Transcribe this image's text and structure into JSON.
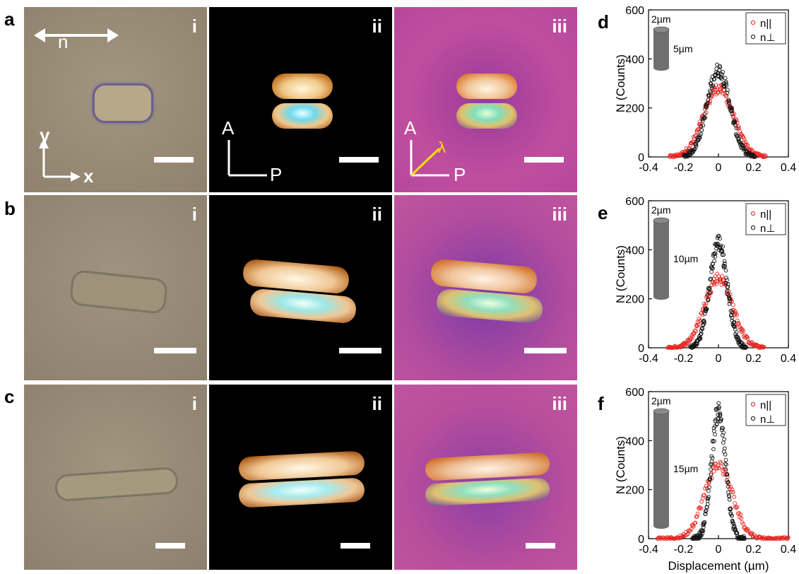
{
  "labels": {
    "row_a": "a",
    "row_b": "b",
    "row_c": "c",
    "roman_i": "i",
    "roman_ii": "ii",
    "roman_iii": "iii",
    "director": "n",
    "axis_x": "x",
    "axis_y": "y",
    "analyzer": "A",
    "polarizer": "P",
    "lambda": "λ"
  },
  "colors": {
    "brightfield": "#9a8b76",
    "crossed": "#000000",
    "waveplate": "#b54a9c",
    "series_parallel": "#e8231f",
    "series_perp": "#111111",
    "cylinder": "#6f6f6f",
    "lambda_line": "#f5e000"
  },
  "chart_data": [
    {
      "panel": "d",
      "type": "scatter",
      "xlabel": "",
      "ylabel": "N (Counts)",
      "xlim": [
        -0.4,
        0.4
      ],
      "ylim": [
        0,
        600
      ],
      "xticks": [
        "-0.4",
        "-0.2",
        "0",
        "0.2",
        "0.4"
      ],
      "yticks": [
        "0",
        "200",
        "400",
        "600"
      ],
      "legend_position": "top-right",
      "inset_diameter": "2µm",
      "inset_length": "5µm",
      "series": [
        {
          "name": "n||",
          "color": "#e8231f",
          "center": 0,
          "peak": 280,
          "sigma": 0.085,
          "range": [
            -0.28,
            0.27
          ]
        },
        {
          "name": "n⊥",
          "color": "#111111",
          "center": 0,
          "peak": 355,
          "sigma": 0.065,
          "range": [
            -0.2,
            0.21
          ]
        }
      ]
    },
    {
      "panel": "e",
      "type": "scatter",
      "xlabel": "",
      "ylabel": "N (Counts)",
      "xlim": [
        -0.4,
        0.4
      ],
      "ylim": [
        0,
        600
      ],
      "xticks": [
        "-0.4",
        "-0.2",
        "0",
        "0.2",
        "0.4"
      ],
      "yticks": [
        "0",
        "200",
        "400",
        "600"
      ],
      "legend_position": "top-right",
      "inset_diameter": "2µm",
      "inset_length": "10µm",
      "series": [
        {
          "name": "n||",
          "color": "#e8231f",
          "center": 0,
          "peak": 285,
          "sigma": 0.08,
          "range": [
            -0.29,
            0.26
          ]
        },
        {
          "name": "n⊥",
          "color": "#111111",
          "center": 0,
          "peak": 430,
          "sigma": 0.05,
          "range": [
            -0.16,
            0.16
          ]
        }
      ]
    },
    {
      "panel": "f",
      "type": "scatter",
      "xlabel": "Displacement (µm)",
      "ylabel": "N (Counts)",
      "xlim": [
        -0.4,
        0.4
      ],
      "ylim": [
        0,
        600
      ],
      "xticks": [
        "-0.4",
        "-0.2",
        "0",
        "0.2",
        "0.4"
      ],
      "yticks": [
        "0",
        "200",
        "400",
        "600"
      ],
      "legend_position": "top-right",
      "inset_diameter": "2µm",
      "inset_length": "15µm",
      "series": [
        {
          "name": "n||",
          "color": "#e8231f",
          "center": 0,
          "peak": 300,
          "sigma": 0.08,
          "range": [
            -0.35,
            0.4
          ]
        },
        {
          "name": "n⊥",
          "color": "#111111",
          "center": 0,
          "peak": 520,
          "sigma": 0.04,
          "range": [
            -0.15,
            0.15
          ]
        }
      ]
    }
  ]
}
